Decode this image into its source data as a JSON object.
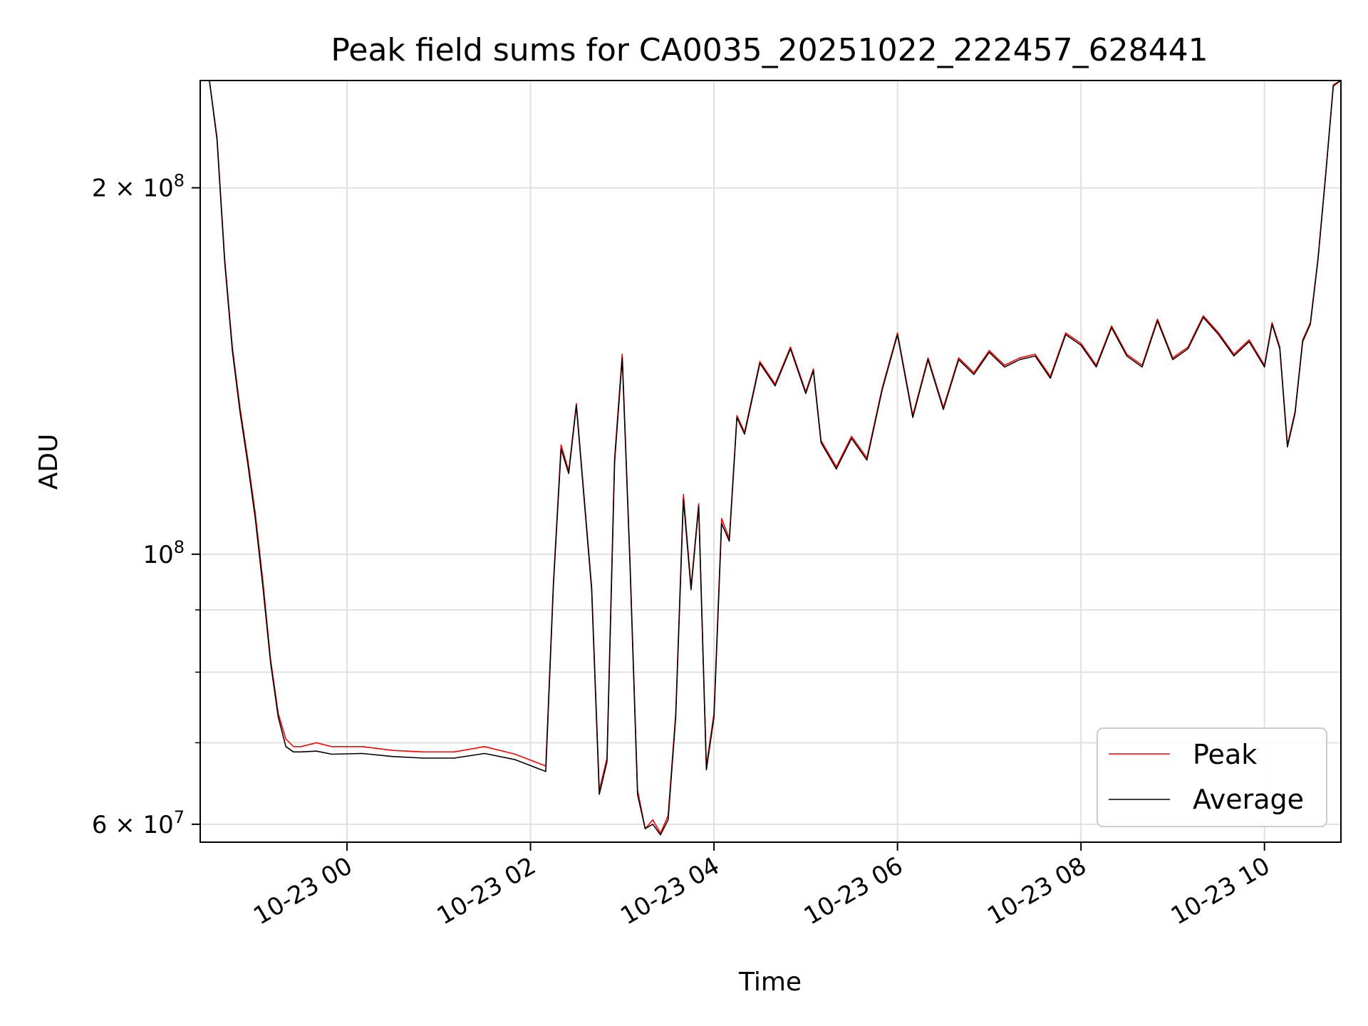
{
  "chart_data": {
    "type": "line",
    "title": "Peak field sums for CA0035_20251022_222457_628441",
    "xlabel": "Time",
    "ylabel": "ADU",
    "yscale": "log",
    "ylim": [
      58000000,
      245000000
    ],
    "xlim": [
      "2025-10-22T22:24",
      "2025-10-23T10:50"
    ],
    "grid": true,
    "legend_position": "lower right",
    "x_ticks": [
      "2025-10-23T00:00",
      "2025-10-23T02:00",
      "2025-10-23T04:00",
      "2025-10-23T06:00",
      "2025-10-23T08:00",
      "2025-10-23T10:00"
    ],
    "x_tick_labels": [
      "10-23 00",
      "10-23 02",
      "10-23 04",
      "10-23 06",
      "10-23 08",
      "10-23 10"
    ],
    "y_major_ticks": [
      {
        "value": 60000000,
        "base": "6 × 10",
        "exp": "7"
      },
      {
        "value": 100000000,
        "base": "10",
        "exp": "8"
      },
      {
        "value": 200000000,
        "base": "2 × 10",
        "exp": "8"
      }
    ],
    "y_minor_ticks": [
      70000000,
      80000000,
      90000000
    ],
    "colors": {
      "peak": "#ff0000",
      "average": "#000000",
      "grid": "#e0e0e0"
    },
    "series": [
      {
        "name": "Peak",
        "color": "#ff0000",
        "x": [
          "2025-10-22T22:24",
          "2025-10-22T22:30",
          "2025-10-22T22:35",
          "2025-10-22T22:40",
          "2025-10-22T22:45",
          "2025-10-22T22:50",
          "2025-10-22T22:55",
          "2025-10-22T23:00",
          "2025-10-22T23:05",
          "2025-10-22T23:10",
          "2025-10-22T23:15",
          "2025-10-22T23:20",
          "2025-10-22T23:25",
          "2025-10-22T23:30",
          "2025-10-22T23:40",
          "2025-10-22T23:50",
          "2025-10-23T00:10",
          "2025-10-23T00:30",
          "2025-10-23T00:50",
          "2025-10-23T01:10",
          "2025-10-23T01:30",
          "2025-10-23T01:50",
          "2025-10-23T02:10",
          "2025-10-23T02:15",
          "2025-10-23T02:20",
          "2025-10-23T02:25",
          "2025-10-23T02:30",
          "2025-10-23T02:40",
          "2025-10-23T02:45",
          "2025-10-23T02:50",
          "2025-10-23T02:55",
          "2025-10-23T03:00",
          "2025-10-23T03:05",
          "2025-10-23T03:10",
          "2025-10-23T03:15",
          "2025-10-23T03:20",
          "2025-10-23T03:25",
          "2025-10-23T03:30",
          "2025-10-23T03:35",
          "2025-10-23T03:40",
          "2025-10-23T03:45",
          "2025-10-23T03:50",
          "2025-10-23T03:55",
          "2025-10-23T04:00",
          "2025-10-23T04:05",
          "2025-10-23T04:10",
          "2025-10-23T04:15",
          "2025-10-23T04:20",
          "2025-10-23T04:30",
          "2025-10-23T04:40",
          "2025-10-23T04:50",
          "2025-10-23T05:00",
          "2025-10-23T05:05",
          "2025-10-23T05:10",
          "2025-10-23T05:20",
          "2025-10-23T05:30",
          "2025-10-23T05:40",
          "2025-10-23T05:50",
          "2025-10-23T06:00",
          "2025-10-23T06:10",
          "2025-10-23T06:20",
          "2025-10-23T06:30",
          "2025-10-23T06:40",
          "2025-10-23T06:50",
          "2025-10-23T07:00",
          "2025-10-23T07:10",
          "2025-10-23T07:20",
          "2025-10-23T07:30",
          "2025-10-23T07:40",
          "2025-10-23T07:50",
          "2025-10-23T08:00",
          "2025-10-23T08:10",
          "2025-10-23T08:20",
          "2025-10-23T08:30",
          "2025-10-23T08:40",
          "2025-10-23T08:50",
          "2025-10-23T09:00",
          "2025-10-23T09:10",
          "2025-10-23T09:20",
          "2025-10-23T09:30",
          "2025-10-23T09:40",
          "2025-10-23T09:50",
          "2025-10-23T10:00",
          "2025-10-23T10:05",
          "2025-10-23T10:10",
          "2025-10-23T10:15",
          "2025-10-23T10:20",
          "2025-10-23T10:25",
          "2025-10-23T10:30",
          "2025-10-23T10:35",
          "2025-10-23T10:40",
          "2025-10-23T10:45",
          "2025-10-23T10:50"
        ],
        "y": [
          245000000,
          245000000,
          220000000,
          175000000,
          148000000,
          132000000,
          120000000,
          108000000,
          95000000,
          82000000,
          74000000,
          70500000,
          69500000,
          69500000,
          70000000,
          69500000,
          69500000,
          69000000,
          68800000,
          68800000,
          69500000,
          68500000,
          67000000,
          95000000,
          123000000,
          117000000,
          133000000,
          94000000,
          64000000,
          68000000,
          120000000,
          146000000,
          99000000,
          64000000,
          59500000,
          60500000,
          59000000,
          61000000,
          74000000,
          112000000,
          94000000,
          110000000,
          67000000,
          74000000,
          107000000,
          103000000,
          130000000,
          126000000,
          144000000,
          138000000,
          148000000,
          136000000,
          142000000,
          124000000,
          118000000,
          125000000,
          120000000,
          137000000,
          152000000,
          130000000,
          145000000,
          132000000,
          145000000,
          141000000,
          147000000,
          143000000,
          145000000,
          146000000,
          140000000,
          152000000,
          149000000,
          143000000,
          154000000,
          146000000,
          143000000,
          156000000,
          145000000,
          148000000,
          157000000,
          152000000,
          146000000,
          150000000,
          143000000,
          155000000,
          148000000,
          123000000,
          131000000,
          150000000,
          155000000,
          175000000,
          205000000,
          243000000,
          245000000
        ]
      },
      {
        "name": "Average",
        "color": "#000000",
        "x": [
          "2025-10-22T22:24",
          "2025-10-22T22:30",
          "2025-10-22T22:35",
          "2025-10-22T22:40",
          "2025-10-22T22:45",
          "2025-10-22T22:50",
          "2025-10-22T22:55",
          "2025-10-22T23:00",
          "2025-10-22T23:05",
          "2025-10-22T23:10",
          "2025-10-22T23:15",
          "2025-10-22T23:20",
          "2025-10-22T23:25",
          "2025-10-22T23:30",
          "2025-10-22T23:40",
          "2025-10-22T23:50",
          "2025-10-23T00:10",
          "2025-10-23T00:30",
          "2025-10-23T00:50",
          "2025-10-23T01:10",
          "2025-10-23T01:30",
          "2025-10-23T01:50",
          "2025-10-23T02:10",
          "2025-10-23T02:15",
          "2025-10-23T02:20",
          "2025-10-23T02:25",
          "2025-10-23T02:30",
          "2025-10-23T02:40",
          "2025-10-23T02:45",
          "2025-10-23T02:50",
          "2025-10-23T02:55",
          "2025-10-23T03:00",
          "2025-10-23T03:05",
          "2025-10-23T03:10",
          "2025-10-23T03:15",
          "2025-10-23T03:20",
          "2025-10-23T03:25",
          "2025-10-23T03:30",
          "2025-10-23T03:35",
          "2025-10-23T03:40",
          "2025-10-23T03:45",
          "2025-10-23T03:50",
          "2025-10-23T03:55",
          "2025-10-23T04:00",
          "2025-10-23T04:05",
          "2025-10-23T04:10",
          "2025-10-23T04:15",
          "2025-10-23T04:20",
          "2025-10-23T04:30",
          "2025-10-23T04:40",
          "2025-10-23T04:50",
          "2025-10-23T05:00",
          "2025-10-23T05:05",
          "2025-10-23T05:10",
          "2025-10-23T05:20",
          "2025-10-23T05:30",
          "2025-10-23T05:40",
          "2025-10-23T05:50",
          "2025-10-23T06:00",
          "2025-10-23T06:10",
          "2025-10-23T06:20",
          "2025-10-23T06:30",
          "2025-10-23T06:40",
          "2025-10-23T06:50",
          "2025-10-23T07:00",
          "2025-10-23T07:10",
          "2025-10-23T07:20",
          "2025-10-23T07:30",
          "2025-10-23T07:40",
          "2025-10-23T07:50",
          "2025-10-23T08:00",
          "2025-10-23T08:10",
          "2025-10-23T08:20",
          "2025-10-23T08:30",
          "2025-10-23T08:40",
          "2025-10-23T08:50",
          "2025-10-23T09:00",
          "2025-10-23T09:10",
          "2025-10-23T09:20",
          "2025-10-23T09:30",
          "2025-10-23T09:40",
          "2025-10-23T09:50",
          "2025-10-23T10:00",
          "2025-10-23T10:05",
          "2025-10-23T10:10",
          "2025-10-23T10:15",
          "2025-10-23T10:20",
          "2025-10-23T10:25",
          "2025-10-23T10:30",
          "2025-10-23T10:35",
          "2025-10-23T10:40",
          "2025-10-23T10:45",
          "2025-10-23T10:50"
        ],
        "y": [
          245000000,
          245000000,
          219000000,
          174000000,
          147000000,
          131000000,
          119000000,
          107000000,
          94000000,
          81500000,
          73500000,
          69500000,
          68800000,
          68800000,
          68900000,
          68500000,
          68600000,
          68200000,
          68000000,
          68000000,
          68600000,
          67800000,
          66300000,
          94500000,
          122000000,
          116500000,
          132500000,
          93500000,
          63500000,
          67500000,
          119000000,
          145000000,
          98500000,
          63500000,
          59500000,
          60000000,
          58800000,
          60500000,
          73500000,
          111000000,
          93500000,
          109500000,
          66500000,
          73500000,
          106000000,
          102500000,
          129500000,
          125500000,
          143500000,
          137500000,
          147500000,
          135500000,
          141500000,
          123500000,
          117500000,
          124500000,
          119500000,
          136500000,
          151500000,
          129500000,
          144500000,
          131500000,
          144500000,
          140500000,
          146500000,
          142500000,
          144500000,
          145500000,
          139500000,
          151500000,
          148500000,
          142500000,
          153500000,
          145500000,
          142500000,
          155500000,
          144500000,
          147500000,
          156500000,
          151500000,
          145500000,
          149500000,
          142500000,
          154500000,
          147500000,
          122500000,
          130500000,
          149500000,
          154500000,
          174500000,
          204500000,
          242500000,
          245000000
        ]
      }
    ]
  }
}
